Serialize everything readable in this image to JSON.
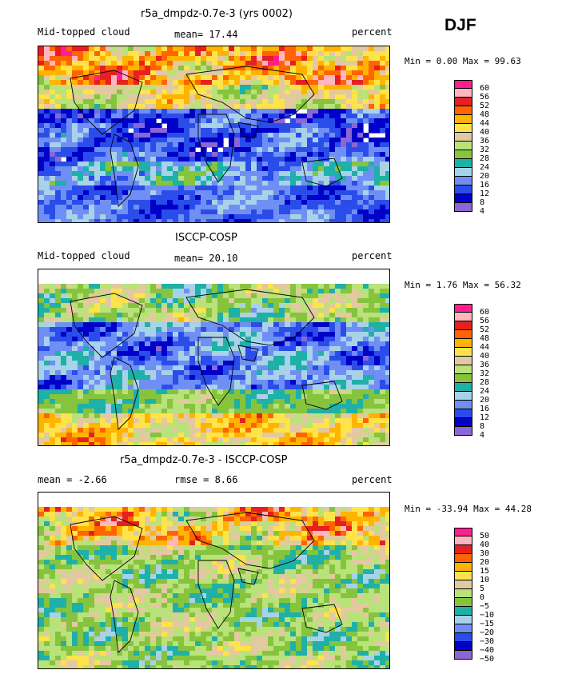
{
  "season": "DJF",
  "palette": [
    "#8b66d6",
    "#0000c8",
    "#2a4dea",
    "#6f8ff5",
    "#a8d2e8",
    "#1fb0a8",
    "#86c43e",
    "#b9e27a",
    "#e3c9a0",
    "#ffe34a",
    "#ffb400",
    "#ff6400",
    "#e62020",
    "#ffb6c1",
    "#ff1e90"
  ],
  "panels": [
    {
      "title": "r5a_dmpdz-0.7e-3 (yrs 0002)",
      "left_label": "Mid-topped cloud",
      "center_label": "mean=  17.44",
      "right_label": "percent",
      "minmax": "Min =   0.00 Max =  99.63",
      "levels": [
        "60",
        "56",
        "52",
        "48",
        "44",
        "40",
        "36",
        "32",
        "28",
        "24",
        "20",
        "16",
        "12",
        "8",
        "4"
      ],
      "field_style": "model"
    },
    {
      "title": "ISCCP-COSP",
      "left_label": "Mid-topped cloud",
      "center_label": "mean=  20.10",
      "right_label": "percent",
      "minmax": "Min =   1.76 Max =  56.32",
      "levels": [
        "60",
        "56",
        "52",
        "48",
        "44",
        "40",
        "36",
        "32",
        "28",
        "24",
        "20",
        "16",
        "12",
        "8",
        "4"
      ],
      "field_style": "obs"
    },
    {
      "title": "r5a_dmpdz-0.7e-3 - ISCCP-COSP",
      "left_label": "mean =  -2.66",
      "center_label": "rmse =   8.66",
      "right_label": "percent",
      "minmax": "Min = -33.94 Max =  44.28",
      "levels": [
        "50",
        "40",
        "30",
        "20",
        "15",
        "10",
        "5",
        "0",
        "−5",
        "−10",
        "−15",
        "−20",
        "−30",
        "−40",
        "−50"
      ],
      "field_style": "diff"
    }
  ]
}
